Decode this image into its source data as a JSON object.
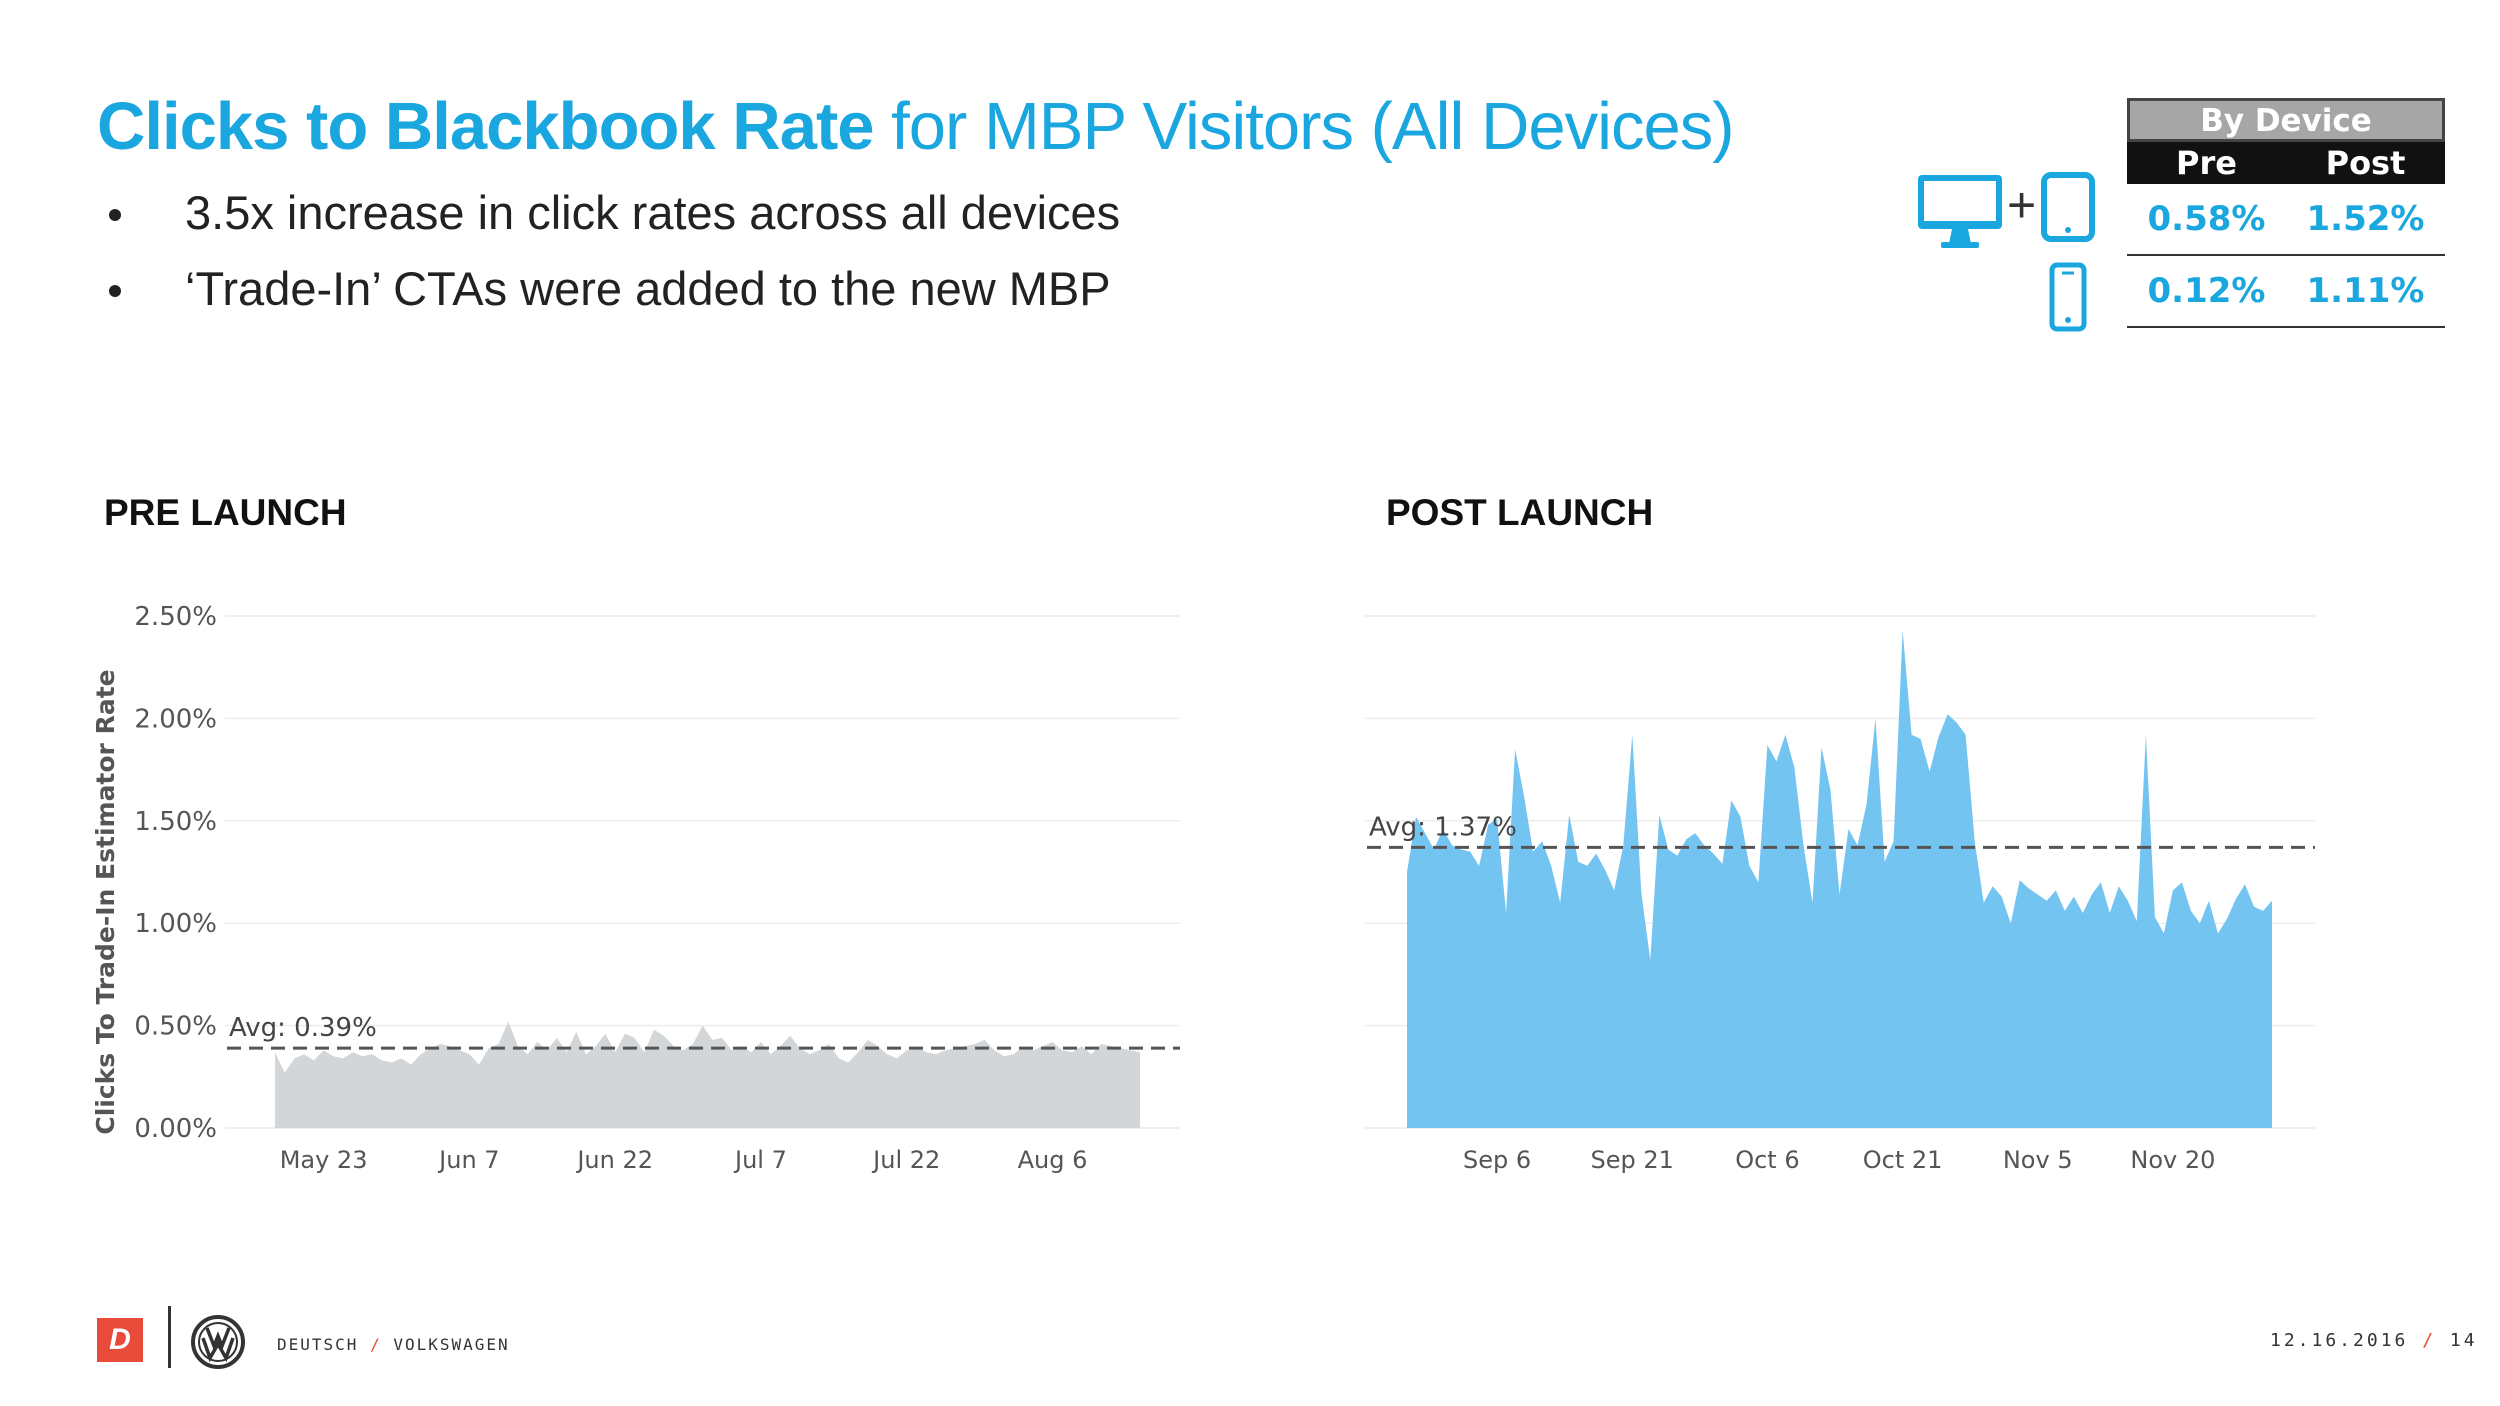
{
  "title": {
    "bold": "Clicks to Blackbook Rate",
    "rest": " for MBP Visitors (All Devices)"
  },
  "bullets": [
    "3.5x increase in click rates across all devices",
    "‘Trade-In’ CTAs were added to the new MBP"
  ],
  "device_table": {
    "header": "By Device",
    "col_pre": "Pre",
    "col_post": "Post",
    "rows": [
      {
        "device": "desktop + tablet",
        "pre": "0.58%",
        "post": "1.52%"
      },
      {
        "device": "mobile",
        "pre": "0.12%",
        "post": "1.11%"
      }
    ],
    "plus": "+"
  },
  "labels": {
    "pre": "PRE LAUNCH",
    "post": "POST LAUNCH"
  },
  "colors": {
    "accent": "#1aa6df",
    "pre_fill": "#d2d6d8",
    "post_fill": "#74c4f2",
    "brand_red": "#e84b3a"
  },
  "chart_data": [
    {
      "type": "area",
      "title": "PRE LAUNCH",
      "ylabel": "Clicks To Trade-In Estimator Rate",
      "ylim": [
        0,
        2.5
      ],
      "yticks": [
        "0.00%",
        "0.50%",
        "1.00%",
        "1.50%",
        "2.00%",
        "2.50%"
      ],
      "ytick_values": [
        0,
        0.5,
        1.0,
        1.5,
        2.0,
        2.5
      ],
      "xticks": [
        "May 23",
        "Jun 7",
        "Jun 22",
        "Jul 7",
        "Jul 22",
        "Aug 6"
      ],
      "xtick_index": [
        5,
        20,
        35,
        50,
        65,
        80
      ],
      "avg_label": "Avg: 0.39%",
      "avg": 0.39,
      "fill": "#d2d6d8",
      "values": [
        0.37,
        0.27,
        0.34,
        0.36,
        0.33,
        0.38,
        0.35,
        0.34,
        0.37,
        0.35,
        0.36,
        0.33,
        0.32,
        0.34,
        0.31,
        0.36,
        0.39,
        0.41,
        0.4,
        0.38,
        0.36,
        0.31,
        0.39,
        0.41,
        0.52,
        0.4,
        0.36,
        0.42,
        0.38,
        0.44,
        0.37,
        0.47,
        0.36,
        0.4,
        0.46,
        0.37,
        0.46,
        0.44,
        0.37,
        0.48,
        0.45,
        0.4,
        0.38,
        0.41,
        0.5,
        0.43,
        0.44,
        0.38,
        0.4,
        0.37,
        0.42,
        0.36,
        0.4,
        0.45,
        0.39,
        0.36,
        0.38,
        0.41,
        0.34,
        0.32,
        0.37,
        0.43,
        0.4,
        0.36,
        0.34,
        0.38,
        0.4,
        0.37,
        0.36,
        0.38,
        0.39,
        0.4,
        0.41,
        0.43,
        0.38,
        0.35,
        0.36,
        0.4,
        0.38,
        0.4,
        0.42,
        0.38,
        0.37,
        0.4,
        0.36,
        0.41,
        0.4,
        0.39,
        0.38,
        0.37
      ]
    },
    {
      "type": "area",
      "title": "POST LAUNCH",
      "ylabel": "",
      "ylim": [
        0,
        2.5
      ],
      "xticks": [
        "Sep 6",
        "Sep 21",
        "Oct 6",
        "Oct 21",
        "Nov 5",
        "Nov 20"
      ],
      "xtick_index": [
        10,
        25,
        40,
        55,
        70,
        85
      ],
      "avg_label": "Avg: 1.37%",
      "avg": 1.37,
      "fill": "#74c4f2",
      "values": [
        1.25,
        1.52,
        1.44,
        1.36,
        1.46,
        1.38,
        1.36,
        1.35,
        1.28,
        1.48,
        1.51,
        1.05,
        1.85,
        1.62,
        1.35,
        1.4,
        1.28,
        1.1,
        1.53,
        1.3,
        1.28,
        1.34,
        1.26,
        1.16,
        1.38,
        1.92,
        1.15,
        0.82,
        1.53,
        1.36,
        1.33,
        1.41,
        1.44,
        1.38,
        1.34,
        1.29,
        1.6,
        1.52,
        1.28,
        1.2,
        1.87,
        1.79,
        1.92,
        1.76,
        1.38,
        1.1,
        1.86,
        1.65,
        1.14,
        1.46,
        1.38,
        1.58,
        2.0,
        1.3,
        1.4,
        2.43,
        1.92,
        1.9,
        1.74,
        1.91,
        2.02,
        1.98,
        1.92,
        1.4,
        1.1,
        1.18,
        1.13,
        1.0,
        1.21,
        1.17,
        1.14,
        1.11,
        1.16,
        1.06,
        1.13,
        1.05,
        1.14,
        1.2,
        1.05,
        1.18,
        1.11,
        1.01,
        1.92,
        1.03,
        0.95,
        1.16,
        1.2,
        1.06,
        1.0,
        1.11,
        0.95,
        1.02,
        1.12,
        1.19,
        1.08,
        1.06,
        1.11
      ]
    }
  ],
  "footer": {
    "logo_letter": "D",
    "brand_left": "DEUTSCH",
    "brand_sep": "/",
    "brand_right": "VOLKSWAGEN",
    "date": "12.16.2016",
    "date_sep": "/",
    "page": "14"
  }
}
